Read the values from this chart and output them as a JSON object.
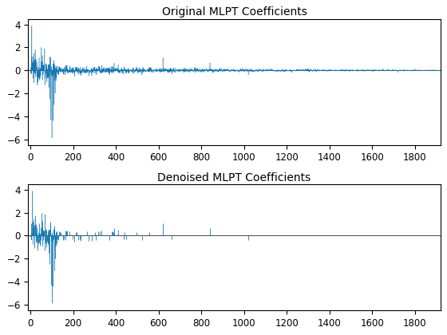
{
  "title1": "Original MLPT Coefficients",
  "title2": "Denoised MLPT Coefficients",
  "n_points": 1920,
  "xlim": [
    -10,
    1920
  ],
  "ylim": [
    -6.5,
    4.5
  ],
  "yticks": [
    -6,
    -4,
    -2,
    0,
    2,
    4
  ],
  "xticks": [
    0,
    200,
    400,
    600,
    800,
    1000,
    1200,
    1400,
    1600,
    1800
  ],
  "stem_color": "#1777b4",
  "background": "#ffffff",
  "seed": 12345,
  "title_fontsize": 10,
  "tick_fontsize": 8.5,
  "threshold": 0.28,
  "dense_end": 130,
  "dense_noise_scale": 0.55,
  "sparse_noise_scale": 0.22,
  "sparse_decay": 800
}
